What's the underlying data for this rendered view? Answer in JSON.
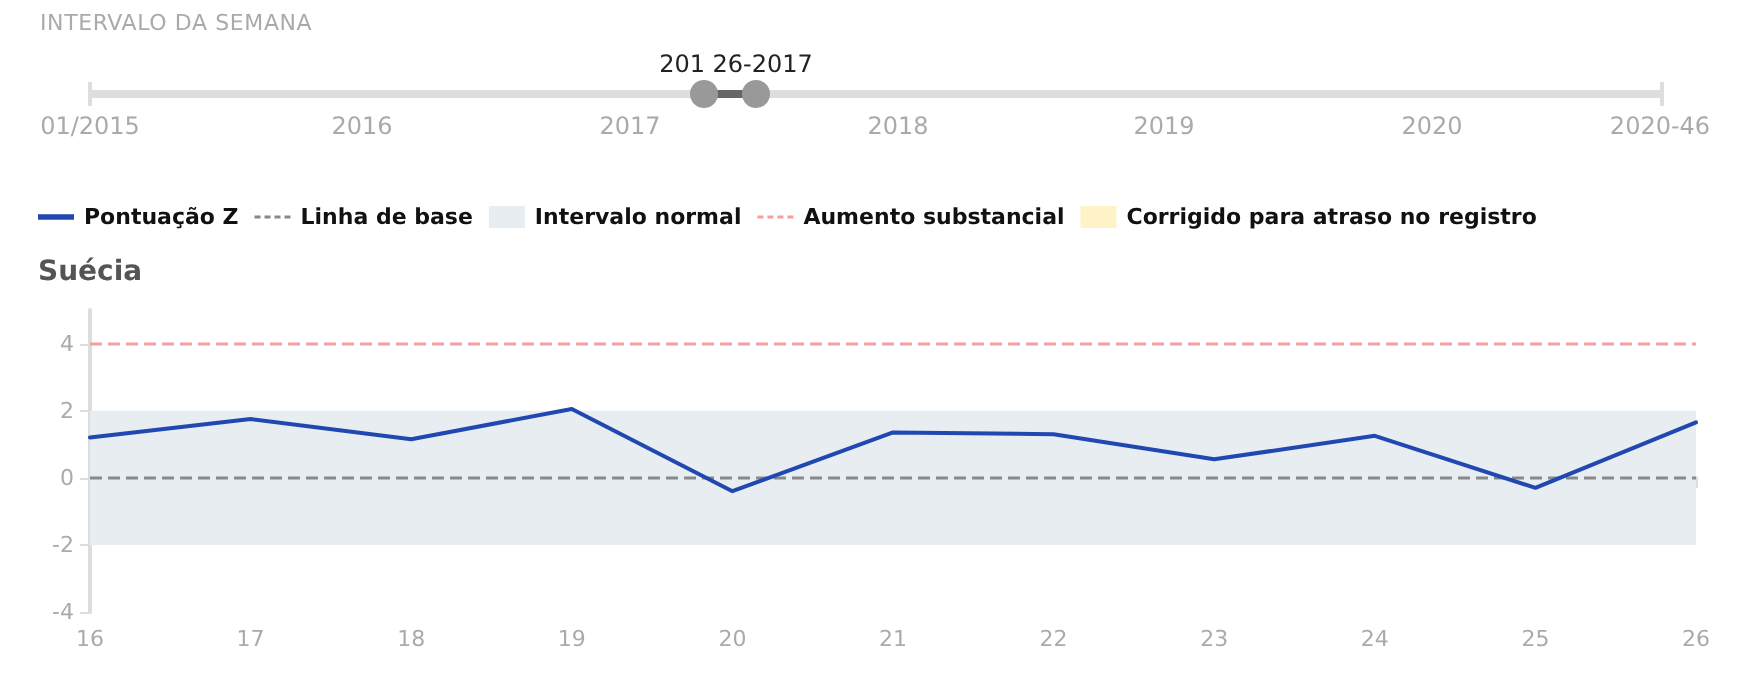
{
  "chart_data": {
    "type": "line",
    "title": "Suécia",
    "annotations": [
      "INTERVALO DA SEMANA",
      "201 26-2017",
      "01/2015",
      "2016",
      "2017",
      "2018",
      "2019",
      "2020",
      "2020-46"
    ],
    "x": [
      16,
      17,
      18,
      19,
      20,
      21,
      22,
      23,
      24,
      25,
      26
    ],
    "series": [
      {
        "name": "Pontuação Z",
        "color": "#2148b0",
        "values": [
          1.2,
          1.75,
          1.15,
          2.05,
          -0.4,
          1.35,
          1.3,
          0.55,
          1.25,
          -0.3,
          1.65
        ]
      },
      {
        "name": "Corrigido para atraso no registro",
        "color": "#fdf3c6",
        "type": "area",
        "values": [
          null,
          null,
          null,
          null,
          null,
          null,
          null,
          null,
          null,
          null,
          null
        ]
      }
    ],
    "ref_lines": [
      {
        "axis": "y",
        "value": 0,
        "label": "Linha de base",
        "color": "#888888",
        "line_style": "dashed"
      },
      {
        "axis": "y",
        "value": 4,
        "label": "Aumento substancial",
        "color": "#f4a0a0",
        "line_style": "dashed"
      }
    ],
    "bands": [
      {
        "axis": "y",
        "from": -2,
        "to": 2,
        "label": "Intervalo normal",
        "color": "#e8edf2"
      }
    ],
    "xlim": [
      16,
      26
    ],
    "xticks": [
      16,
      17,
      18,
      19,
      20,
      21,
      22,
      23,
      24,
      25,
      26
    ],
    "ylim": [
      -4,
      5
    ],
    "yticks": [
      -4,
      -2,
      0,
      2,
      4
    ],
    "legend": "top left",
    "marker": "none",
    "line_style": "solid"
  }
}
